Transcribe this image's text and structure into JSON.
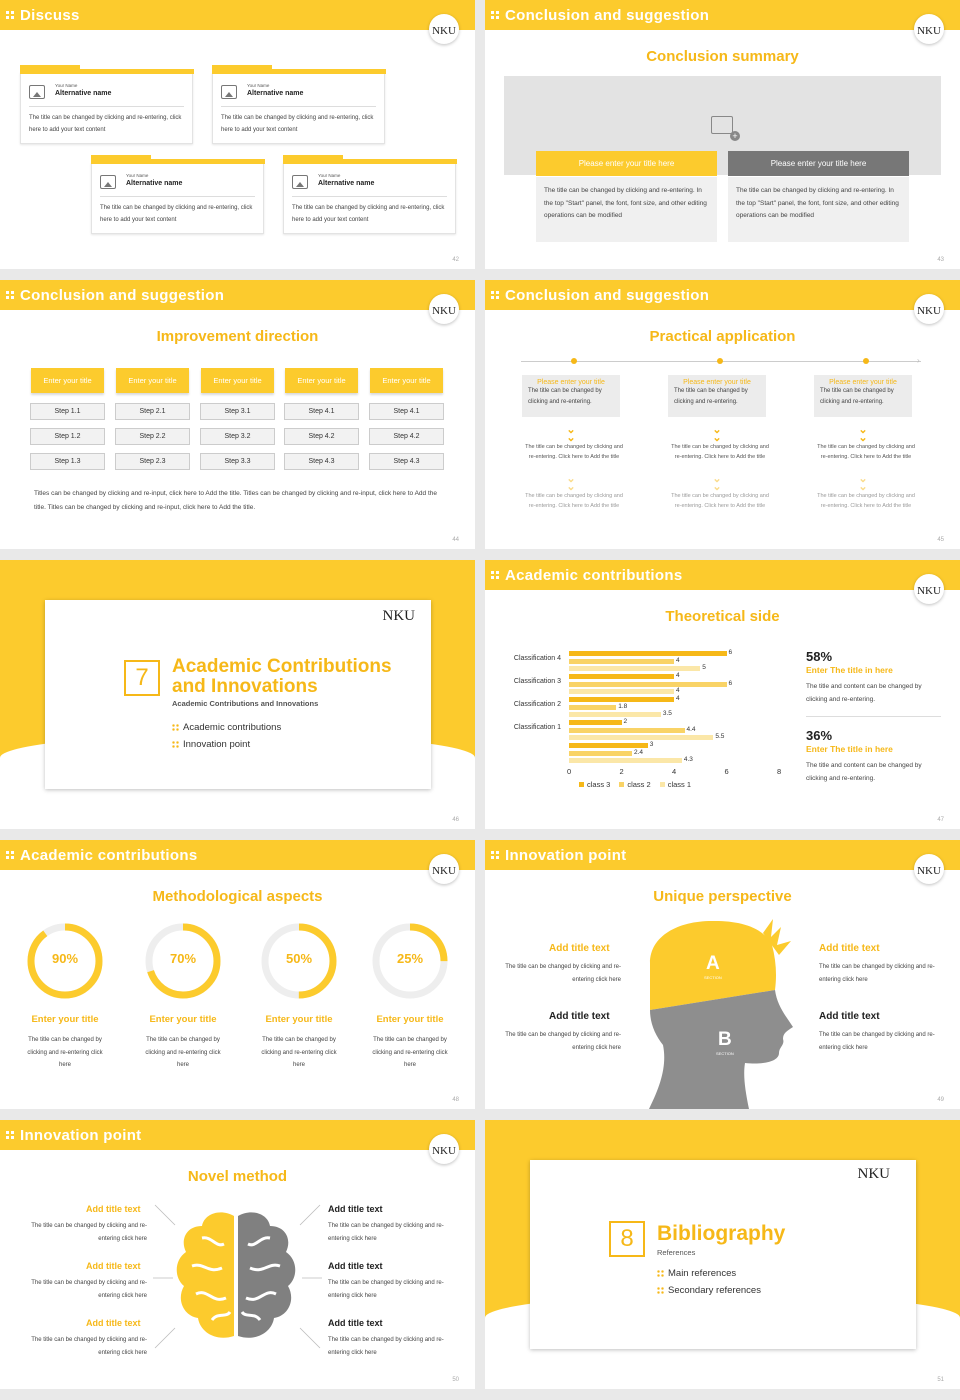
{
  "colors": {
    "accent": "#fccb2d",
    "accent_text": "#f6b818",
    "grey": "#777777"
  },
  "logo_text": "NKU",
  "slide42": {
    "header": "Discuss",
    "page": "42",
    "cards": [
      {
        "small": "Your Name",
        "name": "Alternative name",
        "text": "The title can be changed by clicking and re-entering, click here to add your text content"
      },
      {
        "small": "Your Name",
        "name": "Alternative name",
        "text": "The title can be changed by clicking and re-entering, click here to add your text content"
      },
      {
        "small": "Your Name",
        "name": "Alternative name",
        "text": "The title can be changed by clicking and re-entering, click here to add your text content"
      },
      {
        "small": "Your Name",
        "name": "Alternative name",
        "text": "The title can be changed by clicking and re-entering, click here to add your text content"
      }
    ]
  },
  "slide43": {
    "header": "Conclusion and suggestion",
    "page": "43",
    "subtitle": "Conclusion summary",
    "btn_left": "Please enter your title here",
    "btn_right": "Please enter your title here",
    "text_left": "The title can be changed by clicking and re-entering. In the top \"Start\" panel, the font, font size, and other editing operations can be modified",
    "text_right": "The title can be changed by clicking and re-entering. In the top \"Start\" panel, the font, font size, and other editing operations can be modified"
  },
  "slide44": {
    "header": "Conclusion and suggestion",
    "page": "44",
    "subtitle": "Improvement direction",
    "columns": [
      {
        "title": "Enter your title",
        "steps": [
          "Step 1.1",
          "Step 1.2",
          "Step 1.3"
        ]
      },
      {
        "title": "Enter your title",
        "steps": [
          "Step 2.1",
          "Step 2.2",
          "Step 2.3"
        ]
      },
      {
        "title": "Enter your title",
        "steps": [
          "Step 3.1",
          "Step 3.2",
          "Step 3.3"
        ]
      },
      {
        "title": "Enter your title",
        "steps": [
          "Step 4.1",
          "Step 4.2",
          "Step 4.3"
        ]
      },
      {
        "title": "Enter your title",
        "steps": [
          "Step 4.1",
          "Step 4.2",
          "Step 4.3"
        ]
      }
    ],
    "footer_text": "Titles can be changed by clicking and re-input, click here to Add the title. Titles can be changed by clicking and re-input, click here to Add the title. Titles can be changed by clicking and re-input, click here to Add the title."
  },
  "slide45": {
    "header": "Conclusion and suggestion",
    "page": "45",
    "subtitle": "Practical application",
    "columns": [
      {
        "title": "Please enter your title",
        "text": "The title can be changed by clicking and re-entering.",
        "note1": "The title can be changed by clicking and re-entering. Click here to Add the title",
        "note2": "The title can be changed by clicking and re-entering. Click here to Add the title"
      },
      {
        "title": "Please enter your title",
        "text": "The title can be changed by clicking and re-entering.",
        "note1": "The title can be changed by clicking and re-entering. Click here to Add the title",
        "note2": "The title can be changed by clicking and re-entering. Click here to Add the title"
      },
      {
        "title": "Please enter your title",
        "text": "The title can be changed by clicking and re-entering.",
        "note1": "The title can be changed by clicking and re-entering. Click here to Add the title",
        "note2": "The title can be changed by clicking and re-entering. Click here to Add the title"
      }
    ]
  },
  "slide46": {
    "page": "46",
    "number": "7",
    "title": "Academic Contributions and Innovations",
    "subtitle": "Academic Contributions and Innovations",
    "items": [
      "Academic contributions",
      "Innovation point"
    ]
  },
  "slide47": {
    "header": "Academic contributions",
    "page": "47",
    "subtitle": "Theoretical side",
    "stat1": {
      "pct": "58%",
      "title": "Enter The title in here",
      "text": "The title and content can be changed by clicking and re-entering."
    },
    "stat2": {
      "pct": "36%",
      "title": "Enter The title in here",
      "text": "The title and content can be changed by clicking and re-entering."
    }
  },
  "chart_data": {
    "type": "bar",
    "orientation": "horizontal",
    "categories": [
      "Classification 4",
      "Classification 3",
      "Classification 2",
      "Classification 1",
      ""
    ],
    "series": [
      {
        "name": "class 3",
        "values": [
          6,
          4,
          4,
          2,
          3
        ],
        "color": "#f6b818"
      },
      {
        "name": "class 2",
        "values": [
          4,
          6,
          1.8,
          4.4,
          2.4
        ],
        "color": "#f9d366"
      },
      {
        "name": "class 1",
        "values": [
          5,
          4,
          3.5,
          5.5,
          4.3
        ],
        "color": "#fbe7a8"
      }
    ],
    "xlim": [
      0,
      8
    ],
    "xticks": [
      "0",
      "2",
      "4",
      "6",
      "8"
    ],
    "legend": "bottom"
  },
  "slide48": {
    "header": "Academic contributions",
    "page": "48",
    "subtitle": "Methodological aspects",
    "rings": [
      {
        "pct": "90%",
        "value": 0.9,
        "title": "Enter your title",
        "text": "The title can be changed by clicking and re-entering click here"
      },
      {
        "pct": "70%",
        "value": 0.7,
        "title": "Enter your title",
        "text": "The title can be changed by clicking and re-entering click here"
      },
      {
        "pct": "50%",
        "value": 0.5,
        "title": "Enter your title",
        "text": "The title can be changed by clicking and re-entering click here"
      },
      {
        "pct": "25%",
        "value": 0.25,
        "title": "Enter your title",
        "text": "The title can be changed by clicking and re-entering click here"
      }
    ]
  },
  "slide49": {
    "header": "Innovation point",
    "page": "49",
    "subtitle": "Unique perspective",
    "label_a": "A",
    "label_b": "B",
    "section_word": "SECTION",
    "items": [
      {
        "title": "Add title text",
        "text": "The title can be changed by clicking and re-entering click here"
      },
      {
        "title": "Add title text",
        "text": "The title can be changed by clicking and re-entering click here"
      },
      {
        "title": "Add title text",
        "text": "The title can be changed by clicking and re-entering click here"
      },
      {
        "title": "Add title text",
        "text": "The title can be changed by clicking and re-entering click here"
      }
    ]
  },
  "slide50": {
    "header": "Innovation point",
    "page": "50",
    "subtitle": "Novel method",
    "items": [
      {
        "title": "Add title text",
        "text": "The title can be changed by clicking and re-entering click here"
      },
      {
        "title": "Add title text",
        "text": "The title can be changed by clicking and re-entering click here"
      },
      {
        "title": "Add title text",
        "text": "The title can be changed by clicking and re-entering click here"
      },
      {
        "title": "Add title text",
        "text": "The title can be changed by clicking and re-entering click here"
      },
      {
        "title": "Add title text",
        "text": "The title can be changed by clicking and re-entering click here"
      },
      {
        "title": "Add title text",
        "text": "The title can be changed by clicking and re-entering click here"
      }
    ]
  },
  "slide51": {
    "page": "51",
    "number": "8",
    "title": "Bibliography",
    "subtitle": "References",
    "items": [
      "Main references",
      "Secondary references"
    ]
  }
}
